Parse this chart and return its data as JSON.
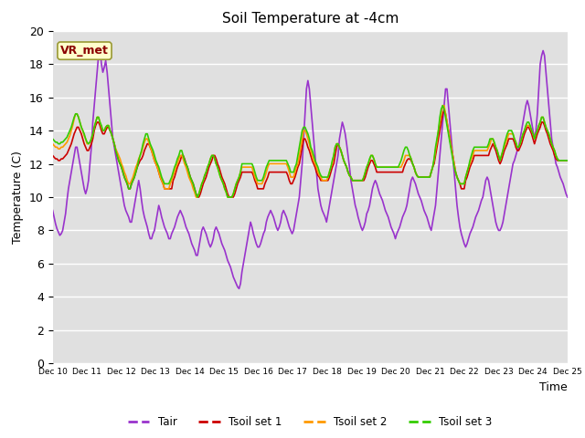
{
  "title": "Soil Temperature at -4cm",
  "xlabel": "Time",
  "ylabel": "Temperature (C)",
  "ylim": [
    0,
    20
  ],
  "annotation": "VR_met",
  "tick_labels": [
    "Dec 10",
    "Dec 11",
    "Dec 12",
    "Dec 13",
    "Dec 14",
    "Dec 15",
    "Dec 16",
    "Dec 17",
    "Dec 18",
    "Dec 19",
    "Dec 20",
    "Dec 21",
    "Dec 22",
    "Dec 23",
    "Dec 24",
    "Dec 25"
  ],
  "tair_color": "#9933cc",
  "tsoil1_color": "#cc0000",
  "tsoil2_color": "#ff9900",
  "tsoil3_color": "#33cc00",
  "line_width": 1.2,
  "bg_color": "#ffffff",
  "plot_bg_color": "#e0e0e0",
  "legend_labels": [
    "Tair",
    "Tsoil set 1",
    "Tsoil set 2",
    "Tsoil set 3"
  ]
}
